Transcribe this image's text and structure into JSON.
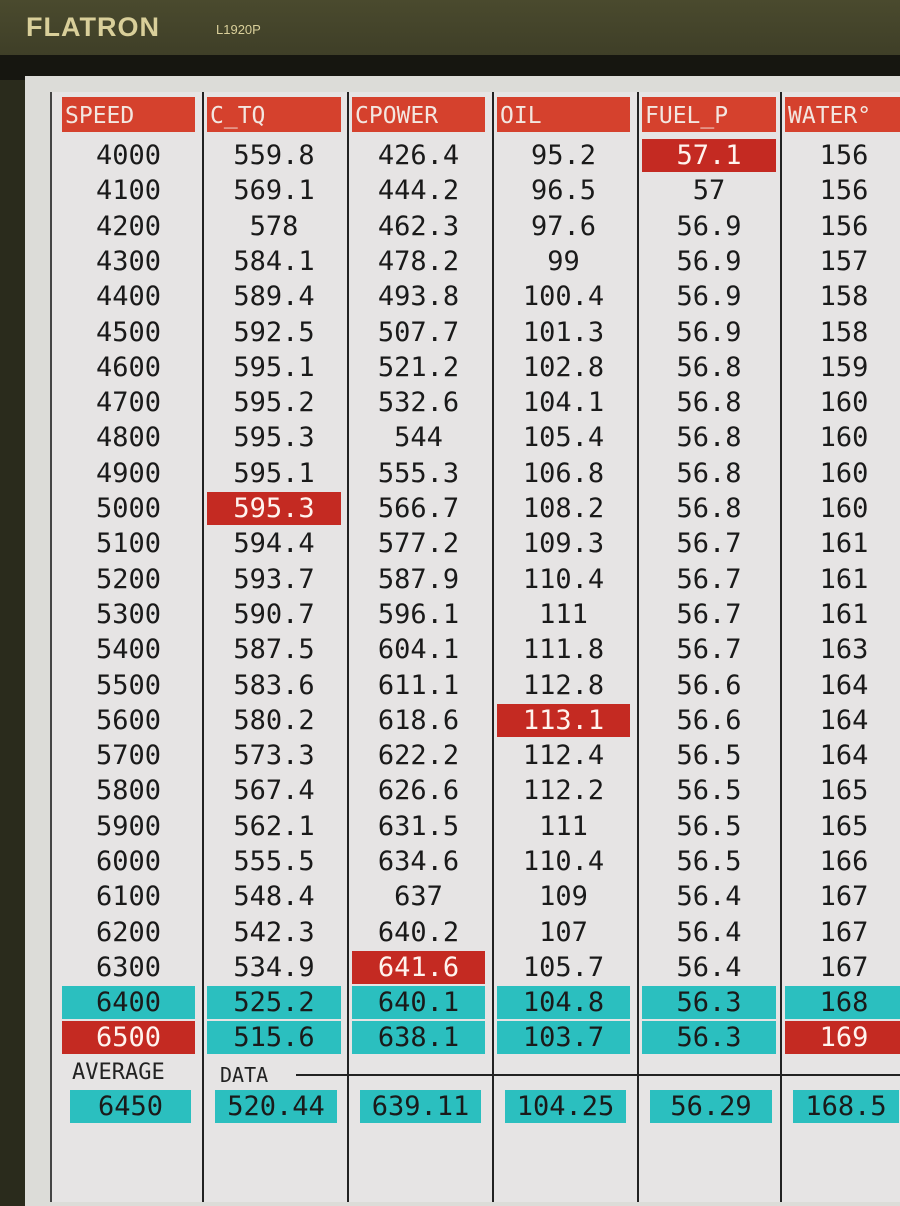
{
  "monitor": {
    "brand": "FLATRON",
    "model": "L1920P"
  },
  "columns": [
    "SPEED",
    "C_TQ",
    "CPOWER",
    "OIL",
    "FUEL_P",
    "WATER°"
  ],
  "rows": [
    [
      "4000",
      "559.8",
      "426.4",
      "95.2",
      "57.1",
      "156"
    ],
    [
      "4100",
      "569.1",
      "444.2",
      "96.5",
      "57",
      "156"
    ],
    [
      "4200",
      "578",
      "462.3",
      "97.6",
      "56.9",
      "156"
    ],
    [
      "4300",
      "584.1",
      "478.2",
      "99",
      "56.9",
      "157"
    ],
    [
      "4400",
      "589.4",
      "493.8",
      "100.4",
      "56.9",
      "158"
    ],
    [
      "4500",
      "592.5",
      "507.7",
      "101.3",
      "56.9",
      "158"
    ],
    [
      "4600",
      "595.1",
      "521.2",
      "102.8",
      "56.8",
      "159"
    ],
    [
      "4700",
      "595.2",
      "532.6",
      "104.1",
      "56.8",
      "160"
    ],
    [
      "4800",
      "595.3",
      "544",
      "105.4",
      "56.8",
      "160"
    ],
    [
      "4900",
      "595.1",
      "555.3",
      "106.8",
      "56.8",
      "160"
    ],
    [
      "5000",
      "595.3",
      "566.7",
      "108.2",
      "56.8",
      "160"
    ],
    [
      "5100",
      "594.4",
      "577.2",
      "109.3",
      "56.7",
      "161"
    ],
    [
      "5200",
      "593.7",
      "587.9",
      "110.4",
      "56.7",
      "161"
    ],
    [
      "5300",
      "590.7",
      "596.1",
      "111",
      "56.7",
      "161"
    ],
    [
      "5400",
      "587.5",
      "604.1",
      "111.8",
      "56.7",
      "163"
    ],
    [
      "5500",
      "583.6",
      "611.1",
      "112.8",
      "56.6",
      "164"
    ],
    [
      "5600",
      "580.2",
      "618.6",
      "113.1",
      "56.6",
      "164"
    ],
    [
      "5700",
      "573.3",
      "622.2",
      "112.4",
      "56.5",
      "164"
    ],
    [
      "5800",
      "567.4",
      "626.6",
      "112.2",
      "56.5",
      "165"
    ],
    [
      "5900",
      "562.1",
      "631.5",
      "111",
      "56.5",
      "165"
    ],
    [
      "6000",
      "555.5",
      "634.6",
      "110.4",
      "56.5",
      "166"
    ],
    [
      "6100",
      "548.4",
      "637",
      "109",
      "56.4",
      "167"
    ],
    [
      "6200",
      "542.3",
      "640.2",
      "107",
      "56.4",
      "167"
    ],
    [
      "6300",
      "534.9",
      "641.6",
      "105.7",
      "56.4",
      "167"
    ],
    [
      "6400",
      "525.2",
      "640.1",
      "104.8",
      "56.3",
      "168"
    ],
    [
      "6500",
      "515.6",
      "638.1",
      "103.7",
      "56.3",
      "169"
    ]
  ],
  "highlights": [
    {
      "row": 0,
      "col": 4,
      "color": "red"
    },
    {
      "row": 10,
      "col": 1,
      "color": "red"
    },
    {
      "row": 16,
      "col": 3,
      "color": "red"
    },
    {
      "row": 23,
      "col": 2,
      "color": "red"
    },
    {
      "row": 24,
      "col": 0,
      "color": "cyan"
    },
    {
      "row": 24,
      "col": 1,
      "color": "cyan"
    },
    {
      "row": 24,
      "col": 2,
      "color": "cyan"
    },
    {
      "row": 24,
      "col": 3,
      "color": "cyan"
    },
    {
      "row": 24,
      "col": 4,
      "color": "cyan"
    },
    {
      "row": 24,
      "col": 5,
      "color": "cyan"
    },
    {
      "row": 25,
      "col": 0,
      "color": "red"
    },
    {
      "row": 25,
      "col": 1,
      "color": "cyan"
    },
    {
      "row": 25,
      "col": 2,
      "color": "cyan"
    },
    {
      "row": 25,
      "col": 3,
      "color": "cyan"
    },
    {
      "row": 25,
      "col": 4,
      "color": "cyan"
    },
    {
      "row": 25,
      "col": 5,
      "color": "red"
    }
  ],
  "average": {
    "label": "AVERAGE",
    "sublabel": "DATA",
    "values": [
      "6450",
      "520.44",
      "639.11",
      "104.25",
      "56.29",
      "168.5"
    ]
  },
  "colors": {
    "header": "#d5412d",
    "max_highlight": "#c42a22",
    "range_highlight": "#2bbfbf"
  }
}
